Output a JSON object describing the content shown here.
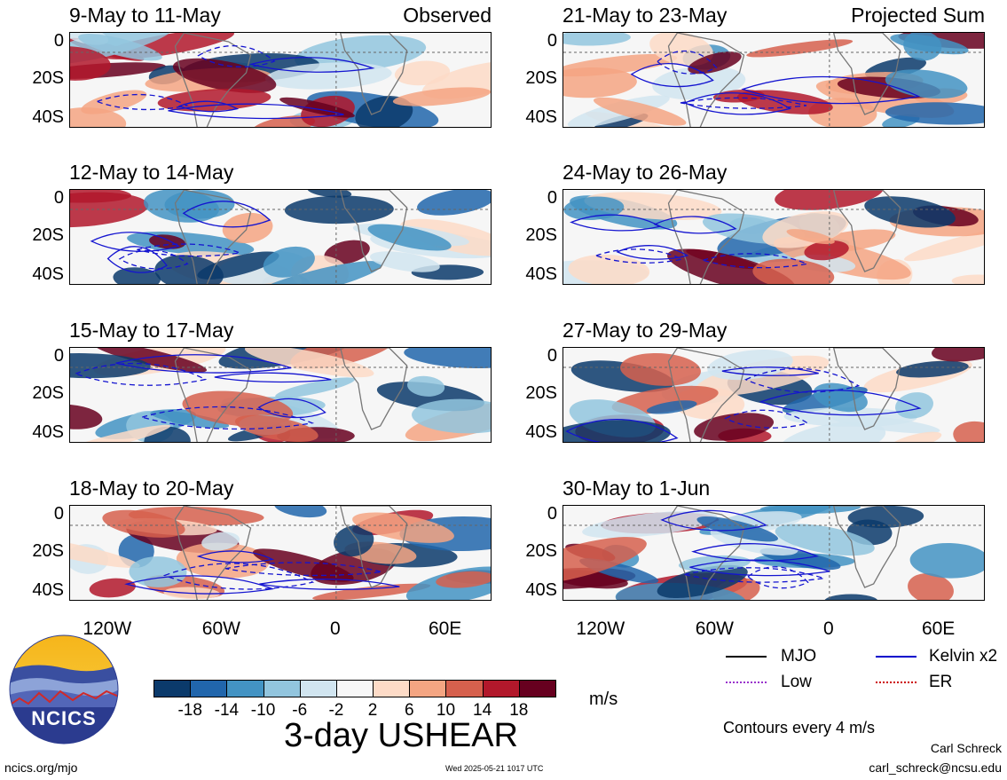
{
  "chart_data": [
    {
      "type": "heatmap",
      "title": "9-May to 11-May",
      "tag": "Observed",
      "yticks": [
        "0",
        "20S",
        "40S"
      ],
      "xticks": [
        "120W",
        "60W",
        "0",
        "60E"
      ]
    },
    {
      "type": "heatmap",
      "title": "12-May to 14-May",
      "tag": "",
      "yticks": [
        "0",
        "20S",
        "40S"
      ],
      "xticks": [
        "120W",
        "60W",
        "0",
        "60E"
      ]
    },
    {
      "type": "heatmap",
      "title": "15-May to 17-May",
      "tag": "",
      "yticks": [
        "0",
        "20S",
        "40S"
      ],
      "xticks": [
        "120W",
        "60W",
        "0",
        "60E"
      ]
    },
    {
      "type": "heatmap",
      "title": "18-May to 20-May",
      "tag": "",
      "yticks": [
        "0",
        "20S",
        "40S"
      ],
      "xticks": [
        "120W",
        "60W",
        "0",
        "60E"
      ]
    },
    {
      "type": "heatmap",
      "title": "21-May to 23-May",
      "tag": "Projected Sum",
      "yticks": [
        "0",
        "20S",
        "40S"
      ],
      "xticks": [
        "120W",
        "60W",
        "0",
        "60E"
      ]
    },
    {
      "type": "heatmap",
      "title": "24-May to 26-May",
      "tag": "",
      "yticks": [
        "0",
        "20S",
        "40S"
      ],
      "xticks": [
        "120W",
        "60W",
        "0",
        "60E"
      ]
    },
    {
      "type": "heatmap",
      "title": "27-May to 29-May",
      "tag": "",
      "yticks": [
        "0",
        "20S",
        "40S"
      ],
      "xticks": [
        "120W",
        "60W",
        "0",
        "60E"
      ]
    },
    {
      "type": "heatmap",
      "title": "30-May to 1-Jun",
      "tag": "",
      "yticks": [
        "0",
        "20S",
        "40S"
      ],
      "xticks": [
        "120W",
        "60W",
        "0",
        "60E"
      ]
    }
  ],
  "colorbar": {
    "labels": [
      "-18",
      "-14",
      "-10",
      "-6",
      "-2",
      "2",
      "6",
      "10",
      "14",
      "18"
    ],
    "colors": [
      "#0b3a6b",
      "#2166ac",
      "#4393c3",
      "#92c5de",
      "#d1e5f0",
      "#f7f7f7",
      "#fddbc7",
      "#f4a582",
      "#d6604d",
      "#b2182b",
      "#67001f"
    ],
    "units": "m/s"
  },
  "main_title": "3-day USHEAR",
  "legend": {
    "items": [
      {
        "label": "MJO",
        "color": "#000000"
      },
      {
        "label": "Kelvin x2",
        "color": "#0000cc"
      },
      {
        "label": "Low",
        "color": "#9933cc"
      },
      {
        "label": "ER",
        "color": "#cc0000"
      }
    ],
    "contour_note": "Contours every 4 m/s"
  },
  "logo": {
    "text": "NCICS"
  },
  "footer": {
    "url": "ncics.org/mjo",
    "timestamp": "Wed 2025-05-21 1017 UTC",
    "author": "Carl Schreck",
    "email": "carl_schreck@ncsu.edu"
  }
}
